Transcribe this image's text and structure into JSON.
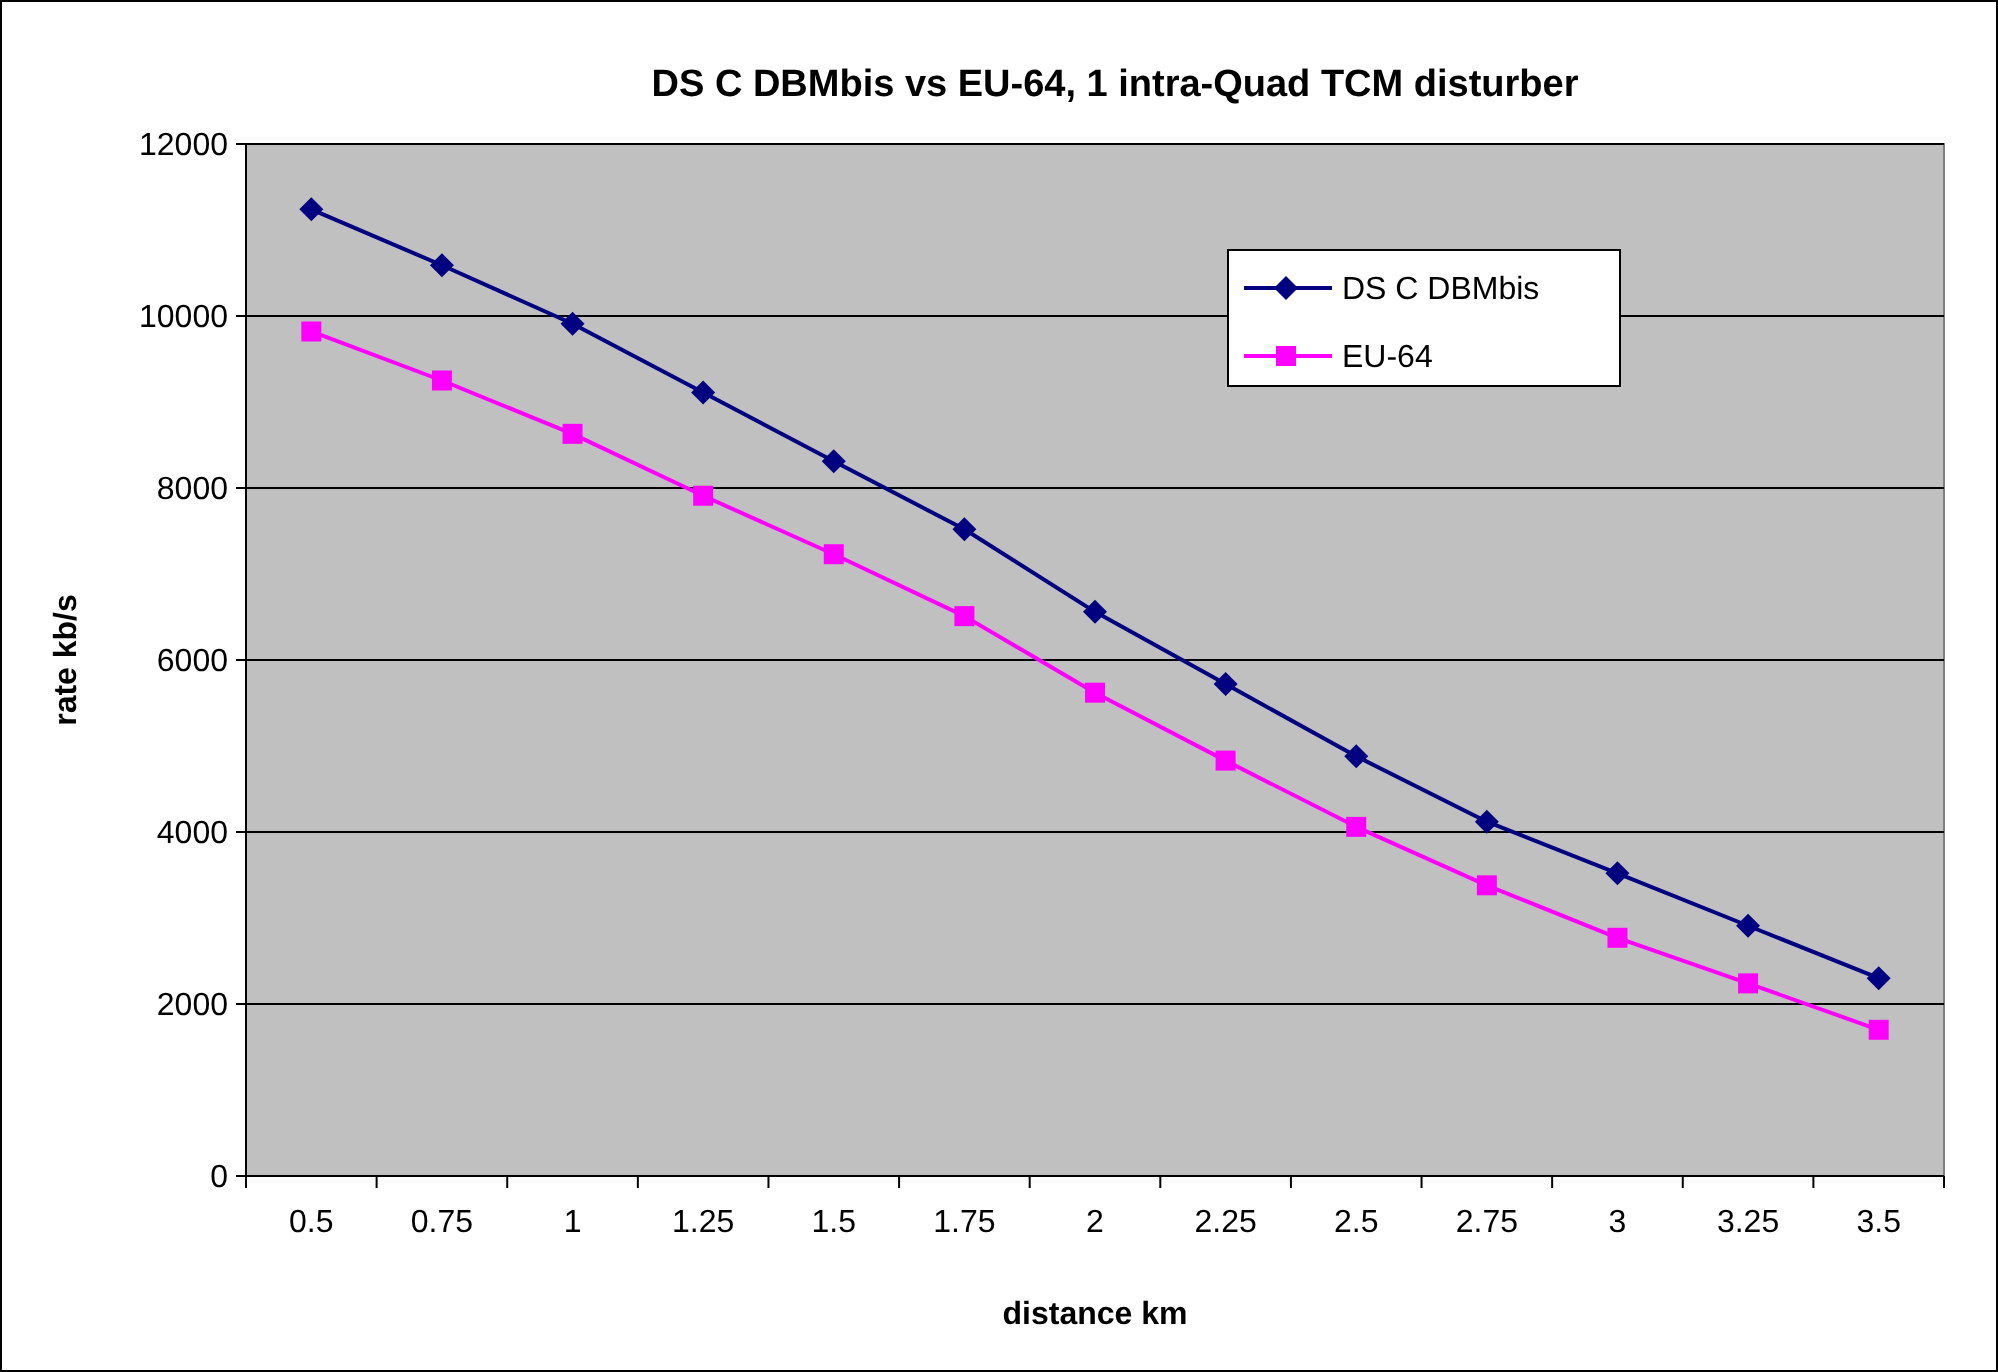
{
  "chart_data": {
    "type": "line",
    "title": "DS C DBMbis vs EU-64, 1 intra-Quad TCM disturber",
    "xlabel": "distance km",
    "ylabel": "rate kb/s",
    "categories": [
      "0.5",
      "0.75",
      "1",
      "1.25",
      "1.5",
      "1.75",
      "2",
      "2.25",
      "2.5",
      "2.75",
      "3",
      "3.25",
      "3.5"
    ],
    "series": [
      {
        "name": "DS C DBMbis",
        "color": "#000080",
        "marker": "diamond",
        "values": [
          11240,
          10590,
          9910,
          9110,
          8310,
          7520,
          6560,
          5720,
          4880,
          4120,
          3520,
          2910,
          2300
        ]
      },
      {
        "name": "EU-64",
        "color": "#ff00ff",
        "marker": "square",
        "values": [
          9820,
          9250,
          8630,
          7910,
          7230,
          6510,
          5620,
          4830,
          4060,
          3380,
          2770,
          2240,
          1700
        ]
      }
    ],
    "ylim": [
      0,
      12000
    ],
    "yticks": [
      0,
      2000,
      4000,
      6000,
      8000,
      10000,
      12000
    ],
    "grid": "y",
    "legend": "top right"
  }
}
